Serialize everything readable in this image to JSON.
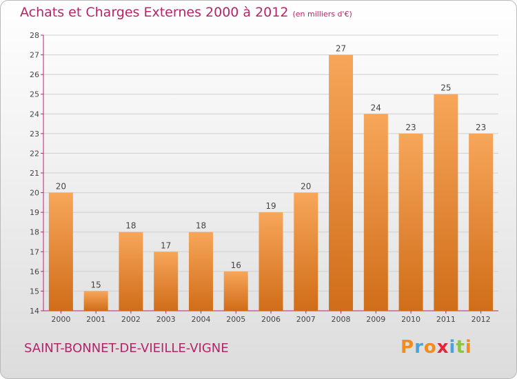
{
  "header": {
    "title": "Achats et Charges Externes 2000 à 2012",
    "subtitle": "(en milliers d'€)"
  },
  "footer": {
    "commune": "SAINT-BONNET-DE-VIEILLE-VIGNE",
    "logo": "Proxiti"
  },
  "colors": {
    "title": "#b5246a",
    "bar_top": "#f7a65a",
    "bar_bottom": "#d06d18",
    "axis": "#b5246a",
    "grid": "#cfcfcf",
    "logo": [
      "#f28c1d",
      "#4aa3dd",
      "#f28c1d",
      "#e5233b",
      "#4aa3dd",
      "#8cc63e",
      "#f28c1d"
    ]
  },
  "chart_data": {
    "type": "bar",
    "categories": [
      "2000",
      "2001",
      "2002",
      "2003",
      "2004",
      "2005",
      "2006",
      "2007",
      "2008",
      "2009",
      "2010",
      "2011",
      "2012"
    ],
    "values": [
      20,
      15,
      18,
      17,
      18,
      16,
      19,
      20,
      27,
      24,
      23,
      25,
      23
    ],
    "ylim": [
      14,
      28
    ],
    "yticks": [
      14,
      15,
      16,
      17,
      18,
      19,
      20,
      21,
      22,
      23,
      24,
      25,
      26,
      27,
      28
    ],
    "grid": "horizontal",
    "xlabel": "",
    "ylabel": ""
  }
}
